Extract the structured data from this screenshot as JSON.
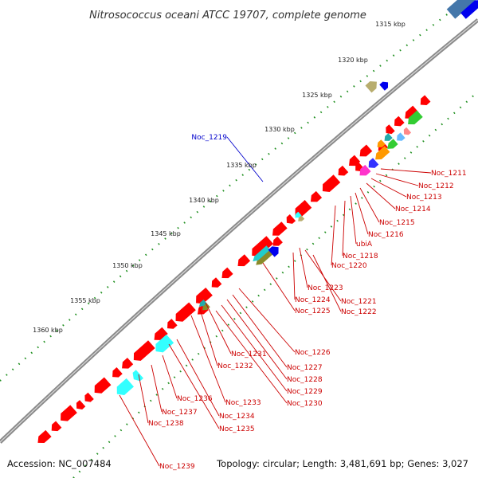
{
  "title": "Nitrosococcus oceani ATCC 19707, complete genome",
  "footer": {
    "accession": "Accession: NC_007484",
    "summary": "Topology: circular; Length: 3,481,691 bp; Genes: 3,027"
  },
  "scale_labels": [
    "1315 kbp",
    "1320 kbp",
    "1325 kbp",
    "1330 kbp",
    "1335 kbp",
    "1340 kbp",
    "1345 kbp",
    "1350 kbp",
    "1355 kbp",
    "1360 kbp"
  ],
  "gene_labels_forward": [
    "Noc_1219"
  ],
  "gene_labels_reverse": [
    "Noc_1211",
    "Noc_1212",
    "Noc_1213",
    "Noc_1214",
    "Noc_1215",
    "Noc_1216",
    "ubiA",
    "Noc_1218",
    "Noc_1220",
    "Noc_1223",
    "Noc_1224",
    "Noc_1221",
    "Noc_1222",
    "Noc_1225",
    "Noc_1226",
    "Noc_1227",
    "Noc_1228",
    "Noc_1229",
    "Noc_1230",
    "Noc_1231",
    "Noc_1232",
    "Noc_1233",
    "Noc_1234",
    "Noc_1235",
    "Noc_1236",
    "Noc_1237",
    "Noc_1238",
    "Noc_1239"
  ],
  "colors": {
    "backbone": "#8a8a8a",
    "reverse_gene": "#ff0000",
    "forward_gene": "#0000ee",
    "label_reverse": "#cc0000",
    "label_forward": "#0000cc",
    "dot_grey": "#a8a8a8",
    "dot_green": "#1f8f1f",
    "aqua": "#33ffff",
    "mint": "#33f0a0",
    "steel": "#4477aa",
    "khaki": "#b8ad6e",
    "olive": "#8a8a2a",
    "magenta": "#ff33cc",
    "green": "#33cc33",
    "orange": "#ff9900",
    "light_blue": "#66bbff"
  }
}
